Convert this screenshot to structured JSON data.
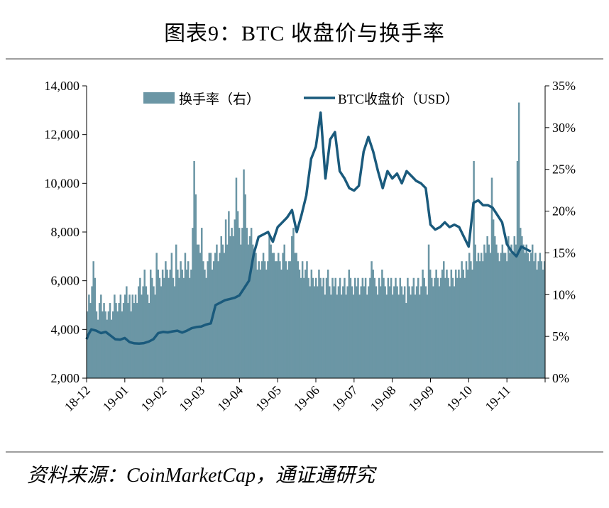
{
  "title": "图表9：BTC 收盘价与换手率",
  "source": "资料来源：CoinMarketCap，通证通研究",
  "chart_data": {
    "type": "bar+line",
    "title": "图表9：BTC 收盘价与换手率",
    "legend_position": "top",
    "legend": [
      "换手率（右）",
      "BTC收盘价（USD）"
    ],
    "x_tick_labels": [
      "18-12",
      "19-01",
      "19-02",
      "19-03",
      "19-04",
      "19-05",
      "19-06",
      "19-07",
      "19-08",
      "19-09",
      "19-10",
      "19-11"
    ],
    "y_left": {
      "range": [
        2000,
        14000
      ],
      "ticks": [
        "2,000",
        "4,000",
        "6,000",
        "8,000",
        "10,000",
        "12,000",
        "14,000"
      ]
    },
    "y_right": {
      "range": [
        0,
        35
      ],
      "ticks": [
        "0%",
        "5%",
        "10%",
        "15%",
        "20%",
        "25%",
        "30%",
        "35%"
      ]
    },
    "colors": {
      "bar": "#6b96a5",
      "line": "#1a5a7c"
    },
    "series": [
      {
        "name": "BTC收盘价（USD）",
        "type": "line",
        "axis": "left",
        "points": [
          [
            0,
            3600
          ],
          [
            0.2,
            3800
          ],
          [
            0.5,
            4000
          ],
          [
            1,
            3950
          ],
          [
            1.5,
            3850
          ],
          [
            2,
            3900
          ],
          [
            2.5,
            3750
          ],
          [
            3,
            3600
          ],
          [
            3.5,
            3580
          ],
          [
            4,
            3650
          ],
          [
            4.5,
            3480
          ],
          [
            5,
            3430
          ],
          [
            5.5,
            3420
          ],
          [
            6,
            3440
          ],
          [
            6.5,
            3500
          ],
          [
            7,
            3600
          ],
          [
            7.5,
            3850
          ],
          [
            8,
            3900
          ],
          [
            8.5,
            3880
          ],
          [
            9,
            3920
          ],
          [
            9.5,
            3950
          ],
          [
            10,
            3870
          ],
          [
            10.5,
            3950
          ],
          [
            11,
            4050
          ],
          [
            11.5,
            4100
          ],
          [
            12,
            4120
          ],
          [
            12.5,
            4200
          ],
          [
            13,
            4250
          ],
          [
            13.5,
            5000
          ],
          [
            14,
            5100
          ],
          [
            14.5,
            5200
          ],
          [
            15,
            5250
          ],
          [
            15.5,
            5300
          ],
          [
            16,
            5400
          ],
          [
            16.5,
            5700
          ],
          [
            17,
            6000
          ],
          [
            17.5,
            7100
          ],
          [
            18,
            7800
          ],
          [
            18.5,
            7900
          ],
          [
            19,
            8000
          ],
          [
            19.5,
            7600
          ],
          [
            20,
            8200
          ],
          [
            20.5,
            8400
          ],
          [
            21,
            8600
          ],
          [
            21.5,
            8900
          ],
          [
            22,
            8000
          ],
          [
            22.5,
            8700
          ],
          [
            23,
            9500
          ],
          [
            23.5,
            11000
          ],
          [
            24,
            11500
          ],
          [
            24.5,
            12900
          ],
          [
            25,
            10200
          ],
          [
            25.5,
            11800
          ],
          [
            26,
            12100
          ],
          [
            26.5,
            10500
          ],
          [
            27,
            10200
          ],
          [
            27.5,
            9800
          ],
          [
            28,
            9700
          ],
          [
            28.5,
            9900
          ],
          [
            29,
            11300
          ],
          [
            29.5,
            11900
          ],
          [
            30,
            11300
          ],
          [
            30.5,
            10500
          ],
          [
            31,
            9800
          ],
          [
            31.5,
            10500
          ],
          [
            32,
            10200
          ],
          [
            32.5,
            10400
          ],
          [
            33,
            10000
          ],
          [
            33.5,
            10500
          ],
          [
            34,
            10300
          ],
          [
            34.5,
            10100
          ],
          [
            35,
            10000
          ],
          [
            35.5,
            9800
          ],
          [
            36,
            8300
          ],
          [
            36.5,
            8100
          ],
          [
            37,
            8200
          ],
          [
            37.5,
            8400
          ],
          [
            38,
            8200
          ],
          [
            38.5,
            8300
          ],
          [
            39,
            8200
          ],
          [
            39.5,
            7800
          ],
          [
            40,
            7400
          ],
          [
            40.5,
            9200
          ],
          [
            41,
            9300
          ],
          [
            41.5,
            9100
          ],
          [
            42,
            9100
          ],
          [
            42.5,
            9000
          ],
          [
            43,
            8700
          ],
          [
            43.5,
            8400
          ],
          [
            44,
            7500
          ],
          [
            44.5,
            7200
          ],
          [
            45,
            7000
          ],
          [
            45.5,
            7400
          ],
          [
            46,
            7300
          ],
          [
            46.5,
            7200
          ]
        ]
      },
      {
        "name": "换手率（右）",
        "type": "bar",
        "axis": "right",
        "values": [
          8,
          10,
          9,
          11,
          14,
          12,
          8,
          7,
          9,
          10,
          8,
          9,
          8,
          7,
          8,
          9,
          7,
          8,
          10,
          9,
          8,
          9,
          10,
          8,
          9,
          10,
          11,
          9,
          10,
          8,
          10,
          9,
          10,
          9,
          11,
          12,
          10,
          11,
          13,
          11,
          10,
          9,
          13,
          12,
          11,
          10,
          15,
          13,
          12,
          11,
          13,
          12,
          14,
          13,
          12,
          13,
          15,
          12,
          11,
          16,
          13,
          12,
          14,
          13,
          12,
          15,
          13,
          14,
          12,
          13,
          18,
          26,
          22,
          16,
          16,
          15,
          18,
          14,
          13,
          12,
          14,
          15,
          15,
          13,
          14,
          15,
          16,
          14,
          15,
          17,
          16,
          15,
          19,
          16,
          20,
          17,
          18,
          17,
          19,
          24,
          20,
          18,
          16,
          18,
          25,
          22,
          18,
          16,
          17,
          18,
          16,
          15,
          15,
          13,
          14,
          13,
          14,
          15,
          14,
          13,
          14,
          17,
          16,
          15,
          15,
          14,
          14,
          15,
          14,
          13,
          15,
          16,
          14,
          13,
          14,
          14,
          17,
          18,
          15,
          15,
          14,
          13,
          12,
          14,
          12,
          13,
          14,
          12,
          11,
          13,
          12,
          11,
          12,
          11,
          13,
          12,
          11,
          12,
          10,
          12,
          13,
          11,
          10,
          12,
          11,
          12,
          10,
          11,
          12,
          10,
          11,
          12,
          10,
          11,
          13,
          12,
          11,
          10,
          12,
          11,
          12,
          10,
          11,
          12,
          11,
          12,
          10,
          11,
          12,
          14,
          13,
          12,
          11,
          10,
          12,
          11,
          13,
          12,
          11,
          10,
          12,
          11,
          12,
          10,
          11,
          12,
          11,
          10,
          12,
          11,
          10,
          11,
          9,
          12,
          11,
          10,
          11,
          12,
          10,
          11,
          12,
          10,
          11,
          13,
          12,
          11,
          10,
          16,
          13,
          12,
          11,
          12,
          13,
          12,
          11,
          12,
          13,
          14,
          12,
          13,
          12,
          11,
          13,
          12,
          11,
          13,
          12,
          13,
          12,
          14,
          13,
          12,
          14,
          13,
          15,
          14,
          13,
          26,
          16,
          14,
          15,
          14,
          15,
          14,
          16,
          15,
          17,
          16,
          15,
          24,
          19,
          17,
          16,
          15,
          14,
          15,
          16,
          15,
          15,
          14,
          17,
          15,
          16,
          15,
          17,
          16,
          26,
          33,
          18,
          17,
          16,
          15,
          16,
          15,
          14,
          15,
          16,
          14,
          15,
          13,
          14,
          15,
          14,
          13,
          14
        ]
      }
    ]
  }
}
